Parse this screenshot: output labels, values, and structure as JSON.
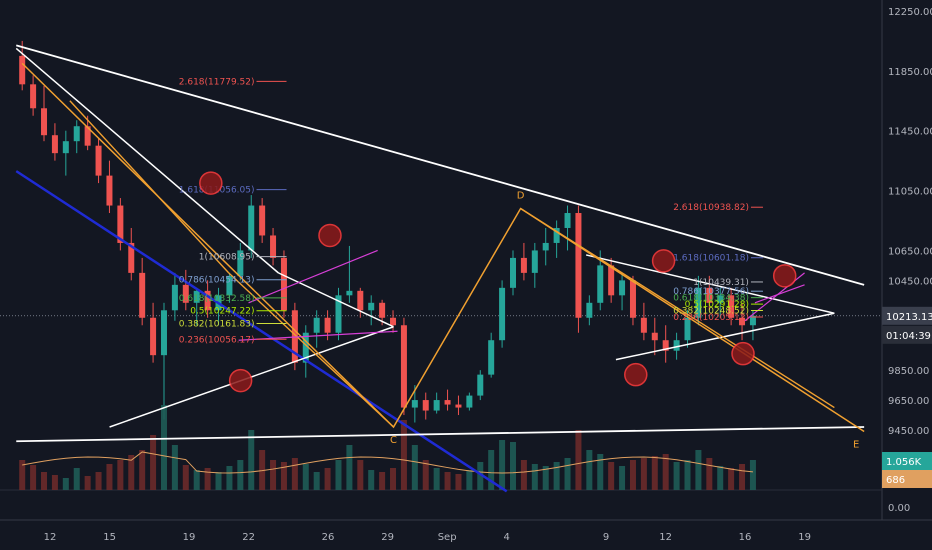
{
  "chart_data": {
    "type": "candlestick",
    "y_axis": {
      "ticks": [
        "12250.00",
        "11850.00",
        "11450.00",
        "11050.00",
        "10650.00",
        "10450.00",
        "9850.00",
        "9650.00",
        "9450.00"
      ],
      "tick_values": [
        12250,
        11850,
        11450,
        11050,
        10650,
        10450,
        9850,
        9650,
        9450
      ],
      "ylim": [
        9000,
        12400
      ]
    },
    "x_axis": {
      "ticks": [
        "12",
        "15",
        "19",
        "22",
        "26",
        "29",
        "Sep",
        "4",
        "9",
        "12",
        "16",
        "19"
      ],
      "tick_days": [
        12,
        15,
        19,
        22,
        26,
        29,
        32,
        35,
        40,
        43,
        47,
        50
      ],
      "xlim": [
        10.3,
        53
      ]
    },
    "candles_ohlc": [
      [
        11950,
        12050,
        11720,
        11760
      ],
      [
        11760,
        11820,
        11550,
        11600
      ],
      [
        11600,
        11750,
        11380,
        11420
      ],
      [
        11420,
        11500,
        11250,
        11300
      ],
      [
        11300,
        11450,
        11150,
        11380
      ],
      [
        11380,
        11520,
        11300,
        11480
      ],
      [
        11480,
        11550,
        11320,
        11350
      ],
      [
        11350,
        11400,
        11100,
        11150
      ],
      [
        11150,
        11250,
        10900,
        10950
      ],
      [
        10950,
        11000,
        10650,
        10700
      ],
      [
        10700,
        10800,
        10450,
        10500
      ],
      [
        10500,
        10600,
        10150,
        10200
      ],
      [
        10200,
        10300,
        9900,
        9950
      ],
      [
        9950,
        10300,
        9520,
        10250
      ],
      [
        10250,
        10500,
        10180,
        10420
      ],
      [
        10420,
        10520,
        10250,
        10300
      ],
      [
        10300,
        10400,
        10150,
        10380
      ],
      [
        10380,
        10450,
        10200,
        10250
      ],
      [
        10250,
        10400,
        10150,
        10350
      ],
      [
        10350,
        10500,
        10300,
        10480
      ],
      [
        10480,
        10700,
        10450,
        10650
      ],
      [
        10650,
        11020,
        10600,
        10950
      ],
      [
        10950,
        11000,
        10700,
        10750
      ],
      [
        10750,
        10800,
        10550,
        10600
      ],
      [
        10600,
        10650,
        10200,
        10250
      ],
      [
        10250,
        10300,
        9850,
        9900
      ],
      [
        9900,
        10150,
        9800,
        10100
      ],
      [
        10100,
        10250,
        10000,
        10200
      ],
      [
        10200,
        10250,
        10050,
        10100
      ],
      [
        10100,
        10400,
        10050,
        10350
      ],
      [
        10350,
        10680,
        10300,
        10380
      ],
      [
        10380,
        10400,
        10200,
        10250
      ],
      [
        10250,
        10350,
        10150,
        10300
      ],
      [
        10300,
        10320,
        10150,
        10200
      ],
      [
        10200,
        10250,
        10100,
        10150
      ],
      [
        10150,
        10200,
        9550,
        9600
      ],
      [
        9600,
        9750,
        9500,
        9650
      ],
      [
        9650,
        9700,
        9520,
        9580
      ],
      [
        9580,
        9700,
        9560,
        9650
      ],
      [
        9650,
        9720,
        9580,
        9620
      ],
      [
        9620,
        9680,
        9550,
        9600
      ],
      [
        9600,
        9700,
        9580,
        9680
      ],
      [
        9680,
        9850,
        9650,
        9820
      ],
      [
        9820,
        10100,
        9800,
        10050
      ],
      [
        10050,
        10450,
        10000,
        10400
      ],
      [
        10400,
        10650,
        10350,
        10600
      ],
      [
        10600,
        10700,
        10450,
        10500
      ],
      [
        10500,
        10700,
        10400,
        10650
      ],
      [
        10650,
        10800,
        10550,
        10700
      ],
      [
        10700,
        10850,
        10600,
        10800
      ],
      [
        10800,
        10950,
        10650,
        10900
      ],
      [
        10900,
        10950,
        10100,
        10200
      ],
      [
        10200,
        10350,
        10150,
        10300
      ],
      [
        10300,
        10650,
        10250,
        10550
      ],
      [
        10550,
        10600,
        10300,
        10350
      ],
      [
        10350,
        10500,
        10250,
        10450
      ],
      [
        10450,
        10480,
        10150,
        10200
      ],
      [
        10200,
        10300,
        10050,
        10100
      ],
      [
        10100,
        10200,
        9950,
        10050
      ],
      [
        10050,
        10150,
        9900,
        9980
      ],
      [
        9980,
        10100,
        9920,
        10050
      ],
      [
        10050,
        10250,
        10000,
        10200
      ],
      [
        10200,
        10480,
        10150,
        10400
      ],
      [
        10400,
        10480,
        10250,
        10300
      ],
      [
        10300,
        10400,
        10200,
        10350
      ],
      [
        10350,
        10400,
        10150,
        10200
      ],
      [
        10200,
        10300,
        10050,
        10150
      ],
      [
        10150,
        10250,
        10050,
        10213
      ]
    ],
    "volume_ma_color": "#e0a060",
    "annotations": {
      "points": [
        "D",
        "C",
        "E"
      ],
      "fib_left": [
        "2.618(11779.52)",
        "1.618(11056.05)",
        "1(10608.95)",
        "0.786(10454.13)",
        "0.618(10332.58)",
        "0.5(10247.22)",
        "0.382(10161.83)",
        "0.236(10056.17)"
      ],
      "fib_right": [
        "2.618(10938.82)",
        "1.618(10601.18)",
        "1(10439.31)",
        "0.786(10377.56)",
        "0.618(10334.38)",
        "0.5(10291.28)",
        "0.382(10248.52)",
        "0.236(10205.12)"
      ],
      "fib_colors": [
        "#ef5350",
        "#5c6bc0",
        "#b2b5be",
        "#7e9fd0",
        "#4caf50",
        "#aeea00",
        "#cddc39",
        "#ef5350"
      ]
    },
    "price_tag": "10213.13",
    "countdown_tag": "01:04:39",
    "volume_tag": "1.056K",
    "ma_tag": "686",
    "zero_label": "0.00",
    "colors": {
      "bull": "#26a69a",
      "bear": "#ef5350",
      "trend_white": "#ffffff",
      "trend_orange": "#f0a030",
      "trend_blue": "#1f2bd4",
      "channel_magenta": "#d63fd6",
      "circle_fill": "#8b1a1a",
      "circle_stroke": "#ff3b3b"
    }
  }
}
